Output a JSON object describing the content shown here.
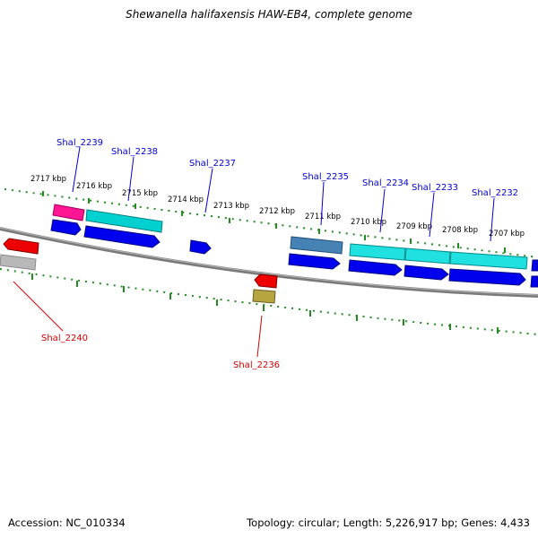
{
  "title": "Shewanella halifaxensis HAW-EB4, complete genome",
  "footer": {
    "accession": "Accession: NC_010334",
    "summary": "Topology: circular; Length: 5,226,917 bp; Genes: 4,433"
  },
  "colors": {
    "backbone": "#808080",
    "tick": "#228b22",
    "forward_label": "#0000cc",
    "reverse_label": "#cc0000",
    "cds": "#0000ee",
    "rna": "#00cccc",
    "trna": "#ff1493",
    "pseudo": "#4682b4",
    "other": "#bdb76b",
    "reverse_cds": "#ee0000",
    "reverse_other": "#b0b0b0"
  },
  "ticks": [
    {
      "label": "2717 kbp",
      "kbp": 2717
    },
    {
      "label": "2716 kbp",
      "kbp": 2716
    },
    {
      "label": "2715 kbp",
      "kbp": 2715
    },
    {
      "label": "2714 kbp",
      "kbp": 2714
    },
    {
      "label": "2713 kbp",
      "kbp": 2713
    },
    {
      "label": "2712 kbp",
      "kbp": 2712
    },
    {
      "label": "2711 kbp",
      "kbp": 2711
    },
    {
      "label": "2710 kbp",
      "kbp": 2710
    },
    {
      "label": "2709 kbp",
      "kbp": 2709
    },
    {
      "label": "2708 kbp",
      "kbp": 2708
    },
    {
      "label": "2707 kbp",
      "kbp": 2707
    }
  ],
  "gene_labels_forward": [
    "Shal_2239",
    "Shal_2238",
    "Shal_2237",
    "Shal_2235",
    "Shal_2234",
    "Shal_2233",
    "Shal_2232"
  ],
  "gene_labels_reverse": [
    "Shal_2240",
    "Shal_2236"
  ]
}
